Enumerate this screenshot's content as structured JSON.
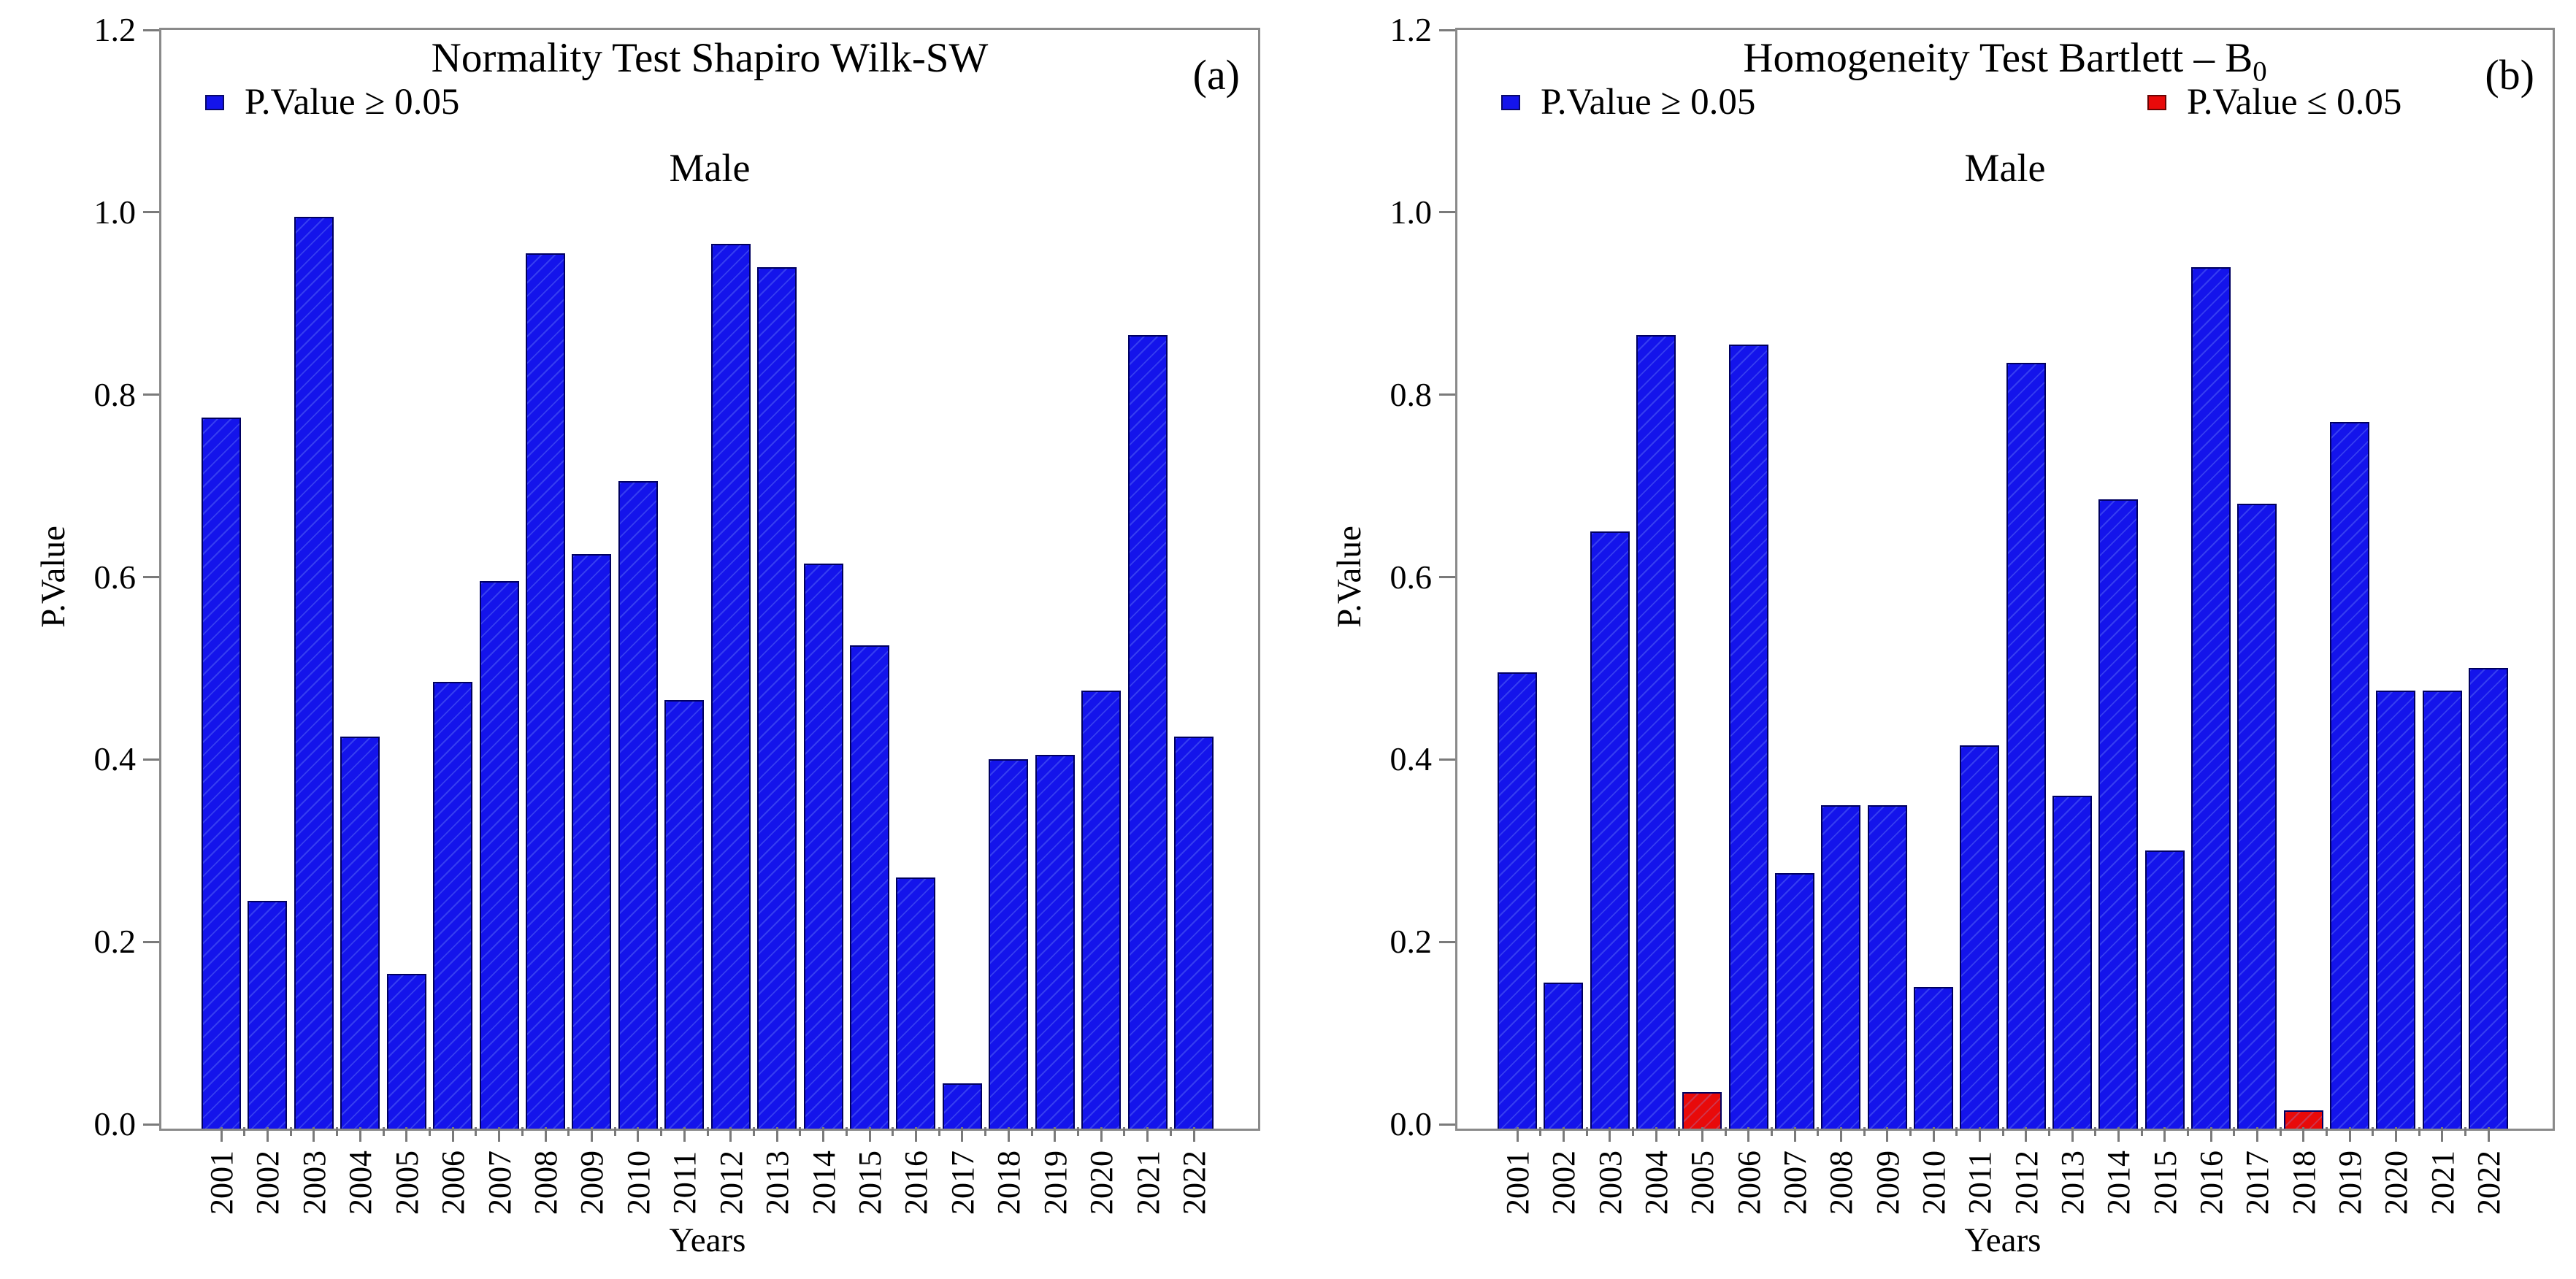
{
  "figure": {
    "background": "#ffffff",
    "frame_color": "#8a8a8a",
    "tick_color": "#7a7a7a",
    "text_color": "#000000"
  },
  "chart_data": [
    {
      "type": "bar",
      "title": "Normality Test Shapiro Wilk-SW",
      "title_sub": "",
      "corner_label": "(a)",
      "subtitle": "Male",
      "xlabel": "Years",
      "ylabel": "P.Value",
      "ylim": [
        0,
        1.2
      ],
      "yticks": [
        "0.0",
        "0.2",
        "0.4",
        "0.6",
        "0.8",
        "1.0",
        "1.2"
      ],
      "grid": false,
      "legend_position": "top-left-inside",
      "legend": [
        {
          "label": "P.Value ≥ 0.05",
          "series": "p_ge_005",
          "color": "#1414EB"
        }
      ],
      "categories": [
        "2001",
        "2002",
        "2003",
        "2004",
        "2005",
        "2006",
        "2007",
        "2008",
        "2009",
        "2010",
        "2011",
        "2012",
        "2013",
        "2014",
        "2015",
        "2016",
        "2017",
        "2018",
        "2019",
        "2020",
        "2021",
        "2022"
      ],
      "bars": [
        {
          "year": "2001",
          "value": 0.78,
          "series": "p_ge_005"
        },
        {
          "year": "2002",
          "value": 0.25,
          "series": "p_ge_005"
        },
        {
          "year": "2003",
          "value": 1.0,
          "series": "p_ge_005"
        },
        {
          "year": "2004",
          "value": 0.43,
          "series": "p_ge_005"
        },
        {
          "year": "2005",
          "value": 0.17,
          "series": "p_ge_005"
        },
        {
          "year": "2006",
          "value": 0.49,
          "series": "p_ge_005"
        },
        {
          "year": "2007",
          "value": 0.6,
          "series": "p_ge_005"
        },
        {
          "year": "2008",
          "value": 0.96,
          "series": "p_ge_005"
        },
        {
          "year": "2009",
          "value": 0.63,
          "series": "p_ge_005"
        },
        {
          "year": "2010",
          "value": 0.71,
          "series": "p_ge_005"
        },
        {
          "year": "2011",
          "value": 0.47,
          "series": "p_ge_005"
        },
        {
          "year": "2012",
          "value": 0.97,
          "series": "p_ge_005"
        },
        {
          "year": "2013",
          "value": 0.945,
          "series": "p_ge_005"
        },
        {
          "year": "2014",
          "value": 0.62,
          "series": "p_ge_005"
        },
        {
          "year": "2015",
          "value": 0.53,
          "series": "p_ge_005"
        },
        {
          "year": "2016",
          "value": 0.275,
          "series": "p_ge_005"
        },
        {
          "year": "2017",
          "value": 0.05,
          "series": "p_ge_005"
        },
        {
          "year": "2018",
          "value": 0.405,
          "series": "p_ge_005"
        },
        {
          "year": "2019",
          "value": 0.41,
          "series": "p_ge_005"
        },
        {
          "year": "2020",
          "value": 0.48,
          "series": "p_ge_005"
        },
        {
          "year": "2021",
          "value": 0.87,
          "series": "p_ge_005"
        },
        {
          "year": "2022",
          "value": 0.43,
          "series": "p_ge_005"
        }
      ]
    },
    {
      "type": "bar",
      "title": "Homogeneity Test Bartlett – B",
      "title_sub": "0",
      "corner_label": "(b)",
      "subtitle": "Male",
      "xlabel": "Years",
      "ylabel": "P.Value",
      "ylim": [
        0,
        1.2
      ],
      "yticks": [
        "0.0",
        "0.2",
        "0.4",
        "0.6",
        "0.8",
        "1.0",
        "1.2"
      ],
      "grid": false,
      "legend_position": "top-inside-two-columns",
      "legend": [
        {
          "label": "P.Value ≥ 0.05",
          "series": "p_ge_005",
          "color": "#1414EB"
        },
        {
          "label": "P.Value ≤ 0.05",
          "series": "p_le_005",
          "color": "#E80A0A"
        }
      ],
      "categories": [
        "2001",
        "2002",
        "2003",
        "2004",
        "2005",
        "2006",
        "2007",
        "2008",
        "2009",
        "2010",
        "2011",
        "2012",
        "2013",
        "2014",
        "2015",
        "2016",
        "2017",
        "2018",
        "2019",
        "2020",
        "2021",
        "2022"
      ],
      "bars": [
        {
          "year": "2001",
          "value": 0.5,
          "series": "p_ge_005"
        },
        {
          "year": "2002",
          "value": 0.16,
          "series": "p_ge_005"
        },
        {
          "year": "2003",
          "value": 0.655,
          "series": "p_ge_005"
        },
        {
          "year": "2004",
          "value": 0.87,
          "series": "p_ge_005"
        },
        {
          "year": "2005",
          "value": 0.04,
          "series": "p_le_005"
        },
        {
          "year": "2006",
          "value": 0.86,
          "series": "p_ge_005"
        },
        {
          "year": "2007",
          "value": 0.28,
          "series": "p_ge_005"
        },
        {
          "year": "2008",
          "value": 0.355,
          "series": "p_ge_005"
        },
        {
          "year": "2009",
          "value": 0.355,
          "series": "p_ge_005"
        },
        {
          "year": "2010",
          "value": 0.155,
          "series": "p_ge_005"
        },
        {
          "year": "2011",
          "value": 0.42,
          "series": "p_ge_005"
        },
        {
          "year": "2012",
          "value": 0.84,
          "series": "p_ge_005"
        },
        {
          "year": "2013",
          "value": 0.365,
          "series": "p_ge_005"
        },
        {
          "year": "2014",
          "value": 0.69,
          "series": "p_ge_005"
        },
        {
          "year": "2015",
          "value": 0.305,
          "series": "p_ge_005"
        },
        {
          "year": "2016",
          "value": 0.945,
          "series": "p_ge_005"
        },
        {
          "year": "2017",
          "value": 0.685,
          "series": "p_ge_005"
        },
        {
          "year": "2018",
          "value": 0.02,
          "series": "p_le_005"
        },
        {
          "year": "2019",
          "value": 0.775,
          "series": "p_ge_005"
        },
        {
          "year": "2020",
          "value": 0.48,
          "series": "p_ge_005"
        },
        {
          "year": "2021",
          "value": 0.48,
          "series": "p_ge_005"
        },
        {
          "year": "2022",
          "value": 0.505,
          "series": "p_ge_005"
        }
      ]
    }
  ]
}
